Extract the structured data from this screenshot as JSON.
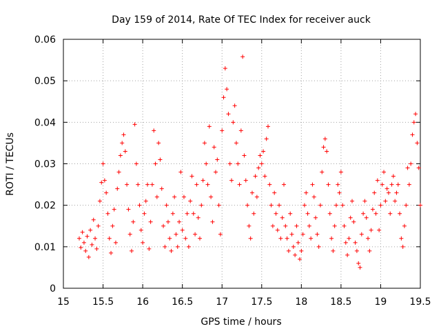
{
  "chart_data": {
    "type": "scatter",
    "title": "Day 159 of 2014, Rate Of TEC Index for receiver auck",
    "xlabel": "GPS time / hours",
    "ylabel": "ROTI / TECUs",
    "xlim": [
      15,
      19.5
    ],
    "ylim": [
      0,
      0.06
    ],
    "xticks": [
      15,
      15.5,
      16,
      16.5,
      17,
      17.5,
      18,
      18.5,
      19,
      19.5
    ],
    "xtick_labels": [
      "15",
      "15.5",
      "16",
      "16.5",
      "17",
      "17.5",
      "18",
      "18.5",
      "19",
      "19.5"
    ],
    "yticks": [
      0,
      0.01,
      0.02,
      0.03,
      0.04,
      0.05,
      0.06
    ],
    "ytick_labels": [
      "0",
      "0.01",
      "0.02",
      "0.03",
      "0.04",
      "0.05",
      "0.06"
    ],
    "grid": true,
    "marker": "+",
    "color": "#ff0000",
    "series": [
      {
        "name": "ROTI",
        "points": [
          [
            15.2,
            0.012
          ],
          [
            15.22,
            0.0098
          ],
          [
            15.24,
            0.0135
          ],
          [
            15.26,
            0.011
          ],
          [
            15.28,
            0.009
          ],
          [
            15.3,
            0.0125
          ],
          [
            15.32,
            0.0075
          ],
          [
            15.34,
            0.014
          ],
          [
            15.36,
            0.0105
          ],
          [
            15.38,
            0.0165
          ],
          [
            15.4,
            0.012
          ],
          [
            15.42,
            0.0095
          ],
          [
            15.44,
            0.015
          ],
          [
            15.46,
            0.021
          ],
          [
            15.48,
            0.0255
          ],
          [
            15.5,
            0.03
          ],
          [
            15.52,
            0.026
          ],
          [
            15.54,
            0.023
          ],
          [
            15.56,
            0.018
          ],
          [
            15.58,
            0.012
          ],
          [
            15.6,
            0.0085
          ],
          [
            15.62,
            0.015
          ],
          [
            15.64,
            0.019
          ],
          [
            15.66,
            0.011
          ],
          [
            15.68,
            0.024
          ],
          [
            15.7,
            0.028
          ],
          [
            15.72,
            0.032
          ],
          [
            15.74,
            0.035
          ],
          [
            15.76,
            0.037
          ],
          [
            15.78,
            0.033
          ],
          [
            15.8,
            0.025
          ],
          [
            15.82,
            0.019
          ],
          [
            15.84,
            0.013
          ],
          [
            15.86,
            0.009
          ],
          [
            15.88,
            0.016
          ],
          [
            15.9,
            0.0395
          ],
          [
            15.92,
            0.03
          ],
          [
            15.94,
            0.025
          ],
          [
            15.96,
            0.02
          ],
          [
            15.98,
            0.014
          ],
          [
            16.0,
            0.011
          ],
          [
            16.02,
            0.018
          ],
          [
            16.04,
            0.021
          ],
          [
            16.06,
            0.025
          ],
          [
            16.08,
            0.0095
          ],
          [
            16.1,
            0.016
          ],
          [
            16.12,
            0.025
          ],
          [
            16.14,
            0.038
          ],
          [
            16.16,
            0.03
          ],
          [
            16.18,
            0.022
          ],
          [
            16.2,
            0.035
          ],
          [
            16.22,
            0.031
          ],
          [
            16.24,
            0.024
          ],
          [
            16.26,
            0.015
          ],
          [
            16.28,
            0.01
          ],
          [
            16.3,
            0.02
          ],
          [
            16.32,
            0.016
          ],
          [
            16.34,
            0.012
          ],
          [
            16.36,
            0.009
          ],
          [
            16.38,
            0.018
          ],
          [
            16.4,
            0.022
          ],
          [
            16.42,
            0.013
          ],
          [
            16.44,
            0.01
          ],
          [
            16.46,
            0.016
          ],
          [
            16.48,
            0.028
          ],
          [
            16.5,
            0.014
          ],
          [
            16.52,
            0.022
          ],
          [
            16.54,
            0.012
          ],
          [
            16.56,
            0.018
          ],
          [
            16.58,
            0.01
          ],
          [
            16.6,
            0.021
          ],
          [
            16.62,
            0.027
          ],
          [
            16.64,
            0.018
          ],
          [
            16.66,
            0.013
          ],
          [
            16.68,
            0.025
          ],
          [
            16.7,
            0.017
          ],
          [
            16.72,
            0.012
          ],
          [
            16.74,
            0.02
          ],
          [
            16.76,
            0.026
          ],
          [
            16.78,
            0.035
          ],
          [
            16.8,
            0.03
          ],
          [
            16.82,
            0.025
          ],
          [
            16.84,
            0.039
          ],
          [
            16.86,
            0.022
          ],
          [
            16.88,
            0.016
          ],
          [
            16.9,
            0.034
          ],
          [
            16.92,
            0.028
          ],
          [
            16.94,
            0.031
          ],
          [
            16.96,
            0.02
          ],
          [
            16.98,
            0.013
          ],
          [
            17.0,
            0.038
          ],
          [
            17.02,
            0.046
          ],
          [
            17.04,
            0.053
          ],
          [
            17.06,
            0.048
          ],
          [
            17.08,
            0.042
          ],
          [
            17.1,
            0.03
          ],
          [
            17.12,
            0.026
          ],
          [
            17.14,
            0.04
          ],
          [
            17.16,
            0.044
          ],
          [
            17.18,
            0.035
          ],
          [
            17.2,
            0.03
          ],
          [
            17.22,
            0.025
          ],
          [
            17.24,
            0.038
          ],
          [
            17.26,
            0.0558
          ],
          [
            17.28,
            0.032
          ],
          [
            17.3,
            0.026
          ],
          [
            17.32,
            0.02
          ],
          [
            17.34,
            0.015
          ],
          [
            17.36,
            0.012
          ],
          [
            17.38,
            0.023
          ],
          [
            17.4,
            0.018
          ],
          [
            17.42,
            0.027
          ],
          [
            17.44,
            0.022
          ],
          [
            17.46,
            0.029
          ],
          [
            17.48,
            0.032
          ],
          [
            17.5,
            0.03
          ],
          [
            17.52,
            0.033
          ],
          [
            17.54,
            0.027
          ],
          [
            17.56,
            0.036
          ],
          [
            17.58,
            0.039
          ],
          [
            17.6,
            0.025
          ],
          [
            17.62,
            0.02
          ],
          [
            17.64,
            0.015
          ],
          [
            17.66,
            0.023
          ],
          [
            17.68,
            0.018
          ],
          [
            17.7,
            0.014
          ],
          [
            17.72,
            0.02
          ],
          [
            17.74,
            0.012
          ],
          [
            17.76,
            0.017
          ],
          [
            17.78,
            0.025
          ],
          [
            17.8,
            0.015
          ],
          [
            17.82,
            0.012
          ],
          [
            17.84,
            0.009
          ],
          [
            17.86,
            0.018
          ],
          [
            17.88,
            0.013
          ],
          [
            17.9,
            0.01
          ],
          [
            17.92,
            0.008
          ],
          [
            17.94,
            0.015
          ],
          [
            17.96,
            0.011
          ],
          [
            17.98,
            0.007
          ],
          [
            18.0,
            0.009
          ],
          [
            18.02,
            0.013
          ],
          [
            18.04,
            0.02
          ],
          [
            18.06,
            0.023
          ],
          [
            18.08,
            0.018
          ],
          [
            18.1,
            0.015
          ],
          [
            18.12,
            0.012
          ],
          [
            18.14,
            0.025
          ],
          [
            18.16,
            0.022
          ],
          [
            18.18,
            0.017
          ],
          [
            18.2,
            0.013
          ],
          [
            18.22,
            0.01
          ],
          [
            18.24,
            0.02
          ],
          [
            18.26,
            0.028
          ],
          [
            18.28,
            0.034
          ],
          [
            18.3,
            0.036
          ],
          [
            18.32,
            0.033
          ],
          [
            18.34,
            0.025
          ],
          [
            18.36,
            0.018
          ],
          [
            18.38,
            0.012
          ],
          [
            18.4,
            0.009
          ],
          [
            18.42,
            0.015
          ],
          [
            18.44,
            0.02
          ],
          [
            18.46,
            0.025
          ],
          [
            18.48,
            0.023
          ],
          [
            18.5,
            0.028
          ],
          [
            18.52,
            0.02
          ],
          [
            18.54,
            0.015
          ],
          [
            18.56,
            0.011
          ],
          [
            18.58,
            0.008
          ],
          [
            18.6,
            0.012
          ],
          [
            18.62,
            0.017
          ],
          [
            18.64,
            0.021
          ],
          [
            18.66,
            0.016
          ],
          [
            18.68,
            0.011
          ],
          [
            18.7,
            0.009
          ],
          [
            18.72,
            0.006
          ],
          [
            18.74,
            0.005
          ],
          [
            18.76,
            0.013
          ],
          [
            18.78,
            0.018
          ],
          [
            18.8,
            0.021
          ],
          [
            18.82,
            0.017
          ],
          [
            18.84,
            0.012
          ],
          [
            18.86,
            0.009
          ],
          [
            18.88,
            0.014
          ],
          [
            18.9,
            0.019
          ],
          [
            18.92,
            0.023
          ],
          [
            18.94,
            0.018
          ],
          [
            18.96,
            0.026
          ],
          [
            18.98,
            0.014
          ],
          [
            19.0,
            0.02
          ],
          [
            19.02,
            0.025
          ],
          [
            19.04,
            0.028
          ],
          [
            19.06,
            0.021
          ],
          [
            19.08,
            0.024
          ],
          [
            19.1,
            0.023
          ],
          [
            19.12,
            0.018
          ],
          [
            19.14,
            0.025
          ],
          [
            19.16,
            0.027
          ],
          [
            19.18,
            0.021
          ],
          [
            19.2,
            0.023
          ],
          [
            19.22,
            0.025
          ],
          [
            19.24,
            0.018
          ],
          [
            19.26,
            0.012
          ],
          [
            19.28,
            0.01
          ],
          [
            19.3,
            0.015
          ],
          [
            19.32,
            0.02
          ],
          [
            19.34,
            0.029
          ],
          [
            19.36,
            0.025
          ],
          [
            19.38,
            0.03
          ],
          [
            19.4,
            0.037
          ],
          [
            19.42,
            0.04
          ],
          [
            19.44,
            0.042
          ],
          [
            19.46,
            0.035
          ],
          [
            19.48,
            0.029
          ],
          [
            19.5,
            0.02
          ]
        ]
      }
    ]
  }
}
